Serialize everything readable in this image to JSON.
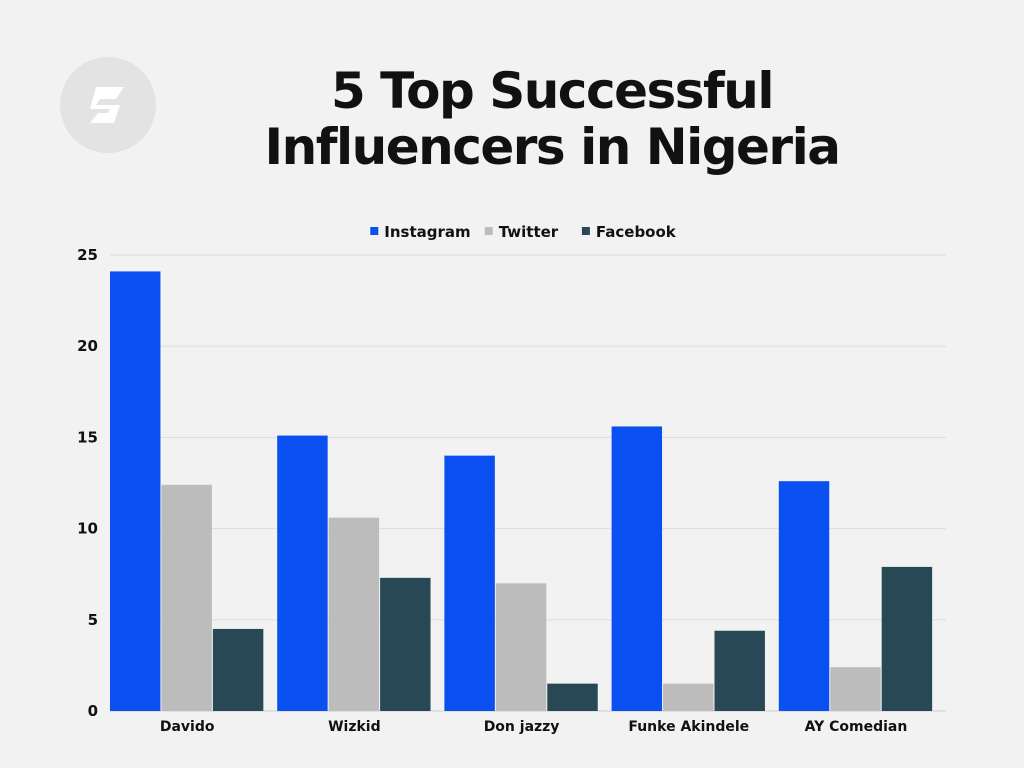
{
  "title_line1": "5 Top Successful",
  "title_line2": "Influencers in Nigeria",
  "logo_icon": "s-logo-icon",
  "chart_data": {
    "type": "bar",
    "categories": [
      "Davido",
      "Wizkid",
      "Don jazzy",
      "Funke Akindele",
      "AY Comedian"
    ],
    "series": [
      {
        "name": "Instagram",
        "color": "#0a50f0",
        "values": [
          24.1,
          15.1,
          14.0,
          15.6,
          12.6
        ]
      },
      {
        "name": "Twitter",
        "color": "#bcbcbc",
        "values": [
          12.4,
          10.6,
          7.0,
          1.5,
          2.4
        ]
      },
      {
        "name": "Facebook",
        "color": "#294855",
        "values": [
          4.5,
          7.3,
          1.5,
          4.4,
          7.9
        ]
      }
    ],
    "yticks": [
      0,
      5,
      10,
      15,
      20,
      25
    ],
    "ylim": [
      0,
      25
    ],
    "xlabel": "",
    "ylabel": "",
    "grid": true,
    "legend_position": "top-center"
  }
}
